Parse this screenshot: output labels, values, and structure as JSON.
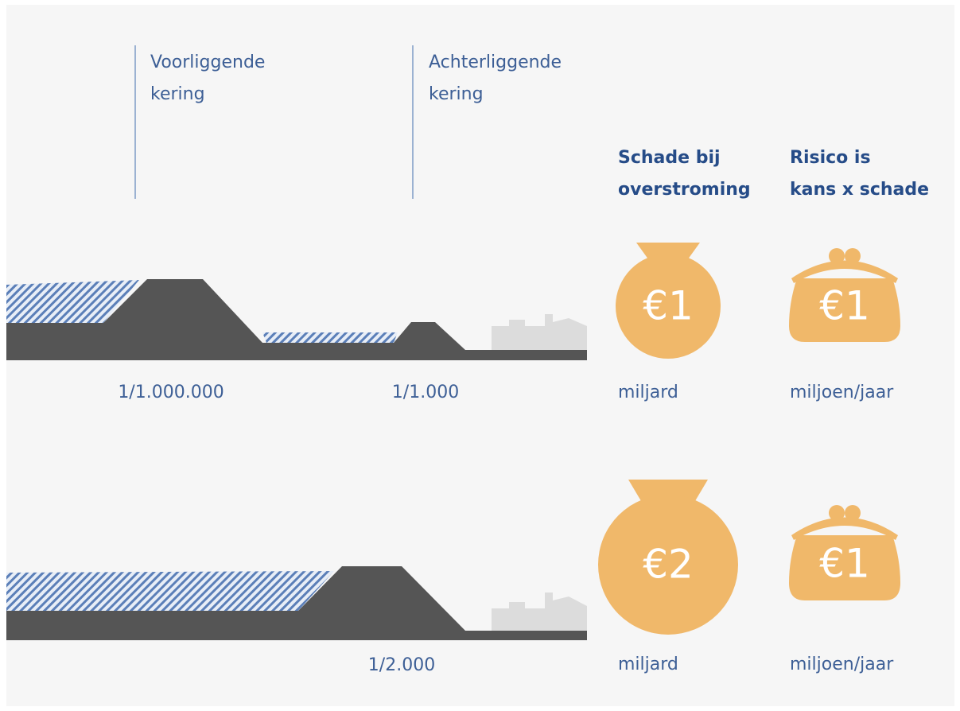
{
  "columns": {
    "front_barrier": {
      "lines": [
        "Voorliggende",
        "kering"
      ]
    },
    "back_barrier": {
      "lines": [
        "Achterliggende",
        "kering"
      ]
    },
    "damage": {
      "lines": [
        "Schade bij",
        "overstroming"
      ]
    },
    "risk": {
      "lines": [
        "Risico is",
        "kans x schade"
      ]
    }
  },
  "scenarios": [
    {
      "probabilities": [
        "1/1.000.000",
        "1/1.000"
      ],
      "damage": {
        "amount": "€1",
        "unit": "miljard"
      },
      "risk": {
        "amount": "€1",
        "unit": "miljoen/jaar"
      }
    },
    {
      "probabilities": [
        "1/2.000"
      ],
      "damage": {
        "amount": "€2",
        "unit": "miljard"
      },
      "risk": {
        "amount": "€1",
        "unit": "miljoen/jaar"
      }
    }
  ]
}
